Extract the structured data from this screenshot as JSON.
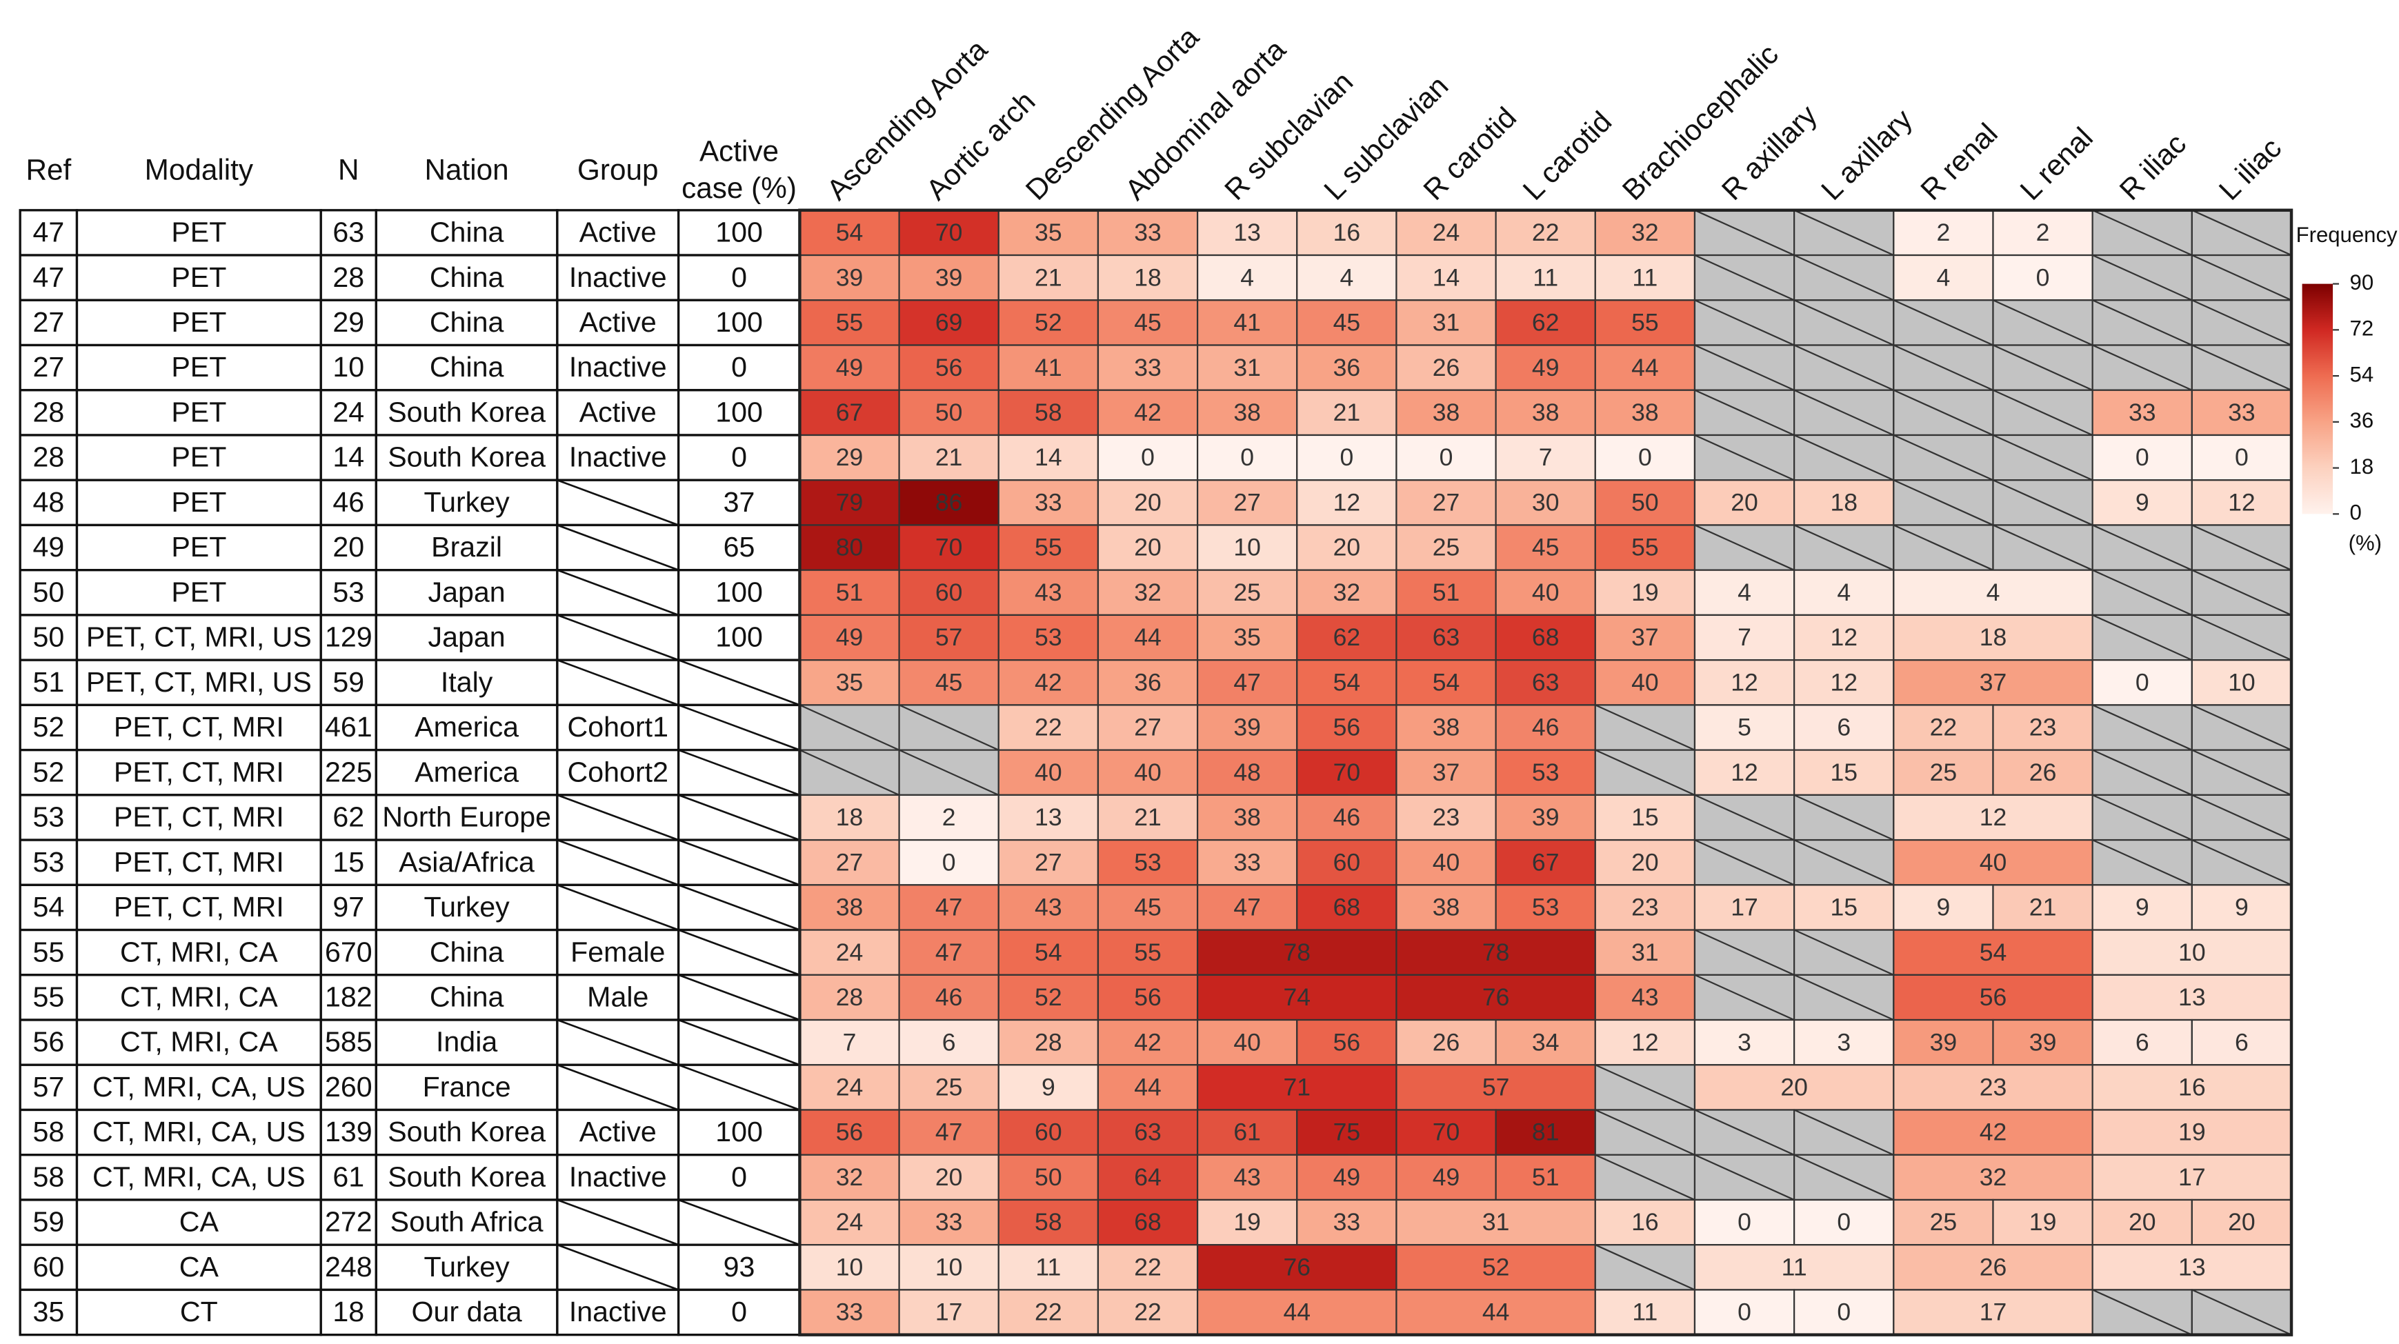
{
  "table": {
    "columns": [
      "Ref",
      "Modality",
      "N",
      "Nation",
      "Group",
      [
        "Active",
        "case (%)"
      ]
    ],
    "vessels": [
      "Ascending Aorta",
      "Aortic arch",
      "Descending Aorta",
      "Abdominal aorta",
      "R subclavian",
      "L subclavian",
      "R carotid",
      "L carotid",
      "Brachiocephalic",
      "R axillary",
      "L axillary",
      "R renal",
      "L renal",
      "R iliac",
      "L iliac"
    ],
    "rows": [
      {
        "ref": 47,
        "modality": "PET",
        "n": 63,
        "nation": "China",
        "group": "Active",
        "active_case": 100,
        "frequency": [
          54,
          70,
          35,
          33,
          13,
          16,
          24,
          22,
          32,
          null,
          null,
          2,
          2,
          null,
          null
        ]
      },
      {
        "ref": 47,
        "modality": "PET",
        "n": 28,
        "nation": "China",
        "group": "Inactive",
        "active_case": 0,
        "frequency": [
          39,
          39,
          21,
          18,
          4,
          4,
          14,
          11,
          11,
          null,
          null,
          4,
          0,
          null,
          null
        ]
      },
      {
        "ref": 27,
        "modality": "PET",
        "n": 29,
        "nation": "China",
        "group": "Active",
        "active_case": 100,
        "frequency": [
          55,
          69,
          52,
          45,
          41,
          45,
          31,
          62,
          55,
          null,
          null,
          null,
          null,
          null,
          null
        ]
      },
      {
        "ref": 27,
        "modality": "PET",
        "n": 10,
        "nation": "China",
        "group": "Inactive",
        "active_case": 0,
        "frequency": [
          49,
          56,
          41,
          33,
          31,
          36,
          26,
          49,
          44,
          null,
          null,
          null,
          null,
          null,
          null
        ]
      },
      {
        "ref": 28,
        "modality": "PET",
        "n": 24,
        "nation": "South Korea",
        "group": "Active",
        "active_case": 100,
        "frequency": [
          67,
          50,
          58,
          42,
          38,
          21,
          38,
          38,
          38,
          null,
          null,
          null,
          null,
          33,
          33
        ]
      },
      {
        "ref": 28,
        "modality": "PET",
        "n": 14,
        "nation": "South Korea",
        "group": "Inactive",
        "active_case": 0,
        "frequency": [
          29,
          21,
          14,
          0,
          0,
          0,
          0,
          7,
          0,
          null,
          null,
          null,
          null,
          0,
          0
        ]
      },
      {
        "ref": 48,
        "modality": "PET",
        "n": 46,
        "nation": "Turkey",
        "group": null,
        "active_case": 37,
        "frequency": [
          79,
          86,
          33,
          20,
          27,
          12,
          27,
          30,
          50,
          20,
          18,
          null,
          null,
          9,
          12
        ]
      },
      {
        "ref": 49,
        "modality": "PET",
        "n": 20,
        "nation": "Brazil",
        "group": null,
        "active_case": 65,
        "frequency": [
          80,
          70,
          55,
          20,
          10,
          20,
          25,
          45,
          55,
          null,
          null,
          null,
          null,
          null,
          null
        ]
      },
      {
        "ref": 50,
        "modality": "PET",
        "n": 53,
        "nation": "Japan",
        "group": null,
        "active_case": 100,
        "frequency": [
          51,
          60,
          43,
          32,
          25,
          32,
          51,
          40,
          19,
          4,
          4,
          {
            "value": 4,
            "span": 2
          },
          null,
          null
        ]
      },
      {
        "ref": 50,
        "modality": "PET, CT, MRI, US",
        "n": 129,
        "nation": "Japan",
        "group": null,
        "active_case": 100,
        "frequency": [
          49,
          57,
          53,
          44,
          35,
          62,
          63,
          68,
          37,
          7,
          12,
          {
            "value": 18,
            "span": 2
          },
          null,
          null
        ]
      },
      {
        "ref": 51,
        "modality": "PET, CT, MRI, US",
        "n": 59,
        "nation": "Italy",
        "group": null,
        "active_case": null,
        "frequency": [
          35,
          45,
          42,
          36,
          47,
          54,
          54,
          63,
          40,
          12,
          12,
          {
            "value": 37,
            "span": 2
          },
          0,
          10
        ]
      },
      {
        "ref": 52,
        "modality": "PET, CT, MRI",
        "n": 461,
        "nation": "America",
        "group": "Cohort1",
        "active_case": null,
        "frequency": [
          null,
          null,
          22,
          27,
          39,
          56,
          38,
          46,
          null,
          5,
          6,
          22,
          23,
          null,
          null
        ]
      },
      {
        "ref": 52,
        "modality": "PET, CT, MRI",
        "n": 225,
        "nation": "America",
        "group": "Cohort2",
        "active_case": null,
        "frequency": [
          null,
          null,
          40,
          40,
          48,
          70,
          37,
          53,
          null,
          12,
          15,
          25,
          26,
          null,
          null
        ]
      },
      {
        "ref": 53,
        "modality": "PET, CT, MRI",
        "n": 62,
        "nation": "North Europe",
        "group": null,
        "active_case": null,
        "frequency": [
          18,
          2,
          13,
          21,
          38,
          46,
          23,
          39,
          15,
          null,
          null,
          {
            "value": 12,
            "span": 2
          },
          null,
          null
        ]
      },
      {
        "ref": 53,
        "modality": "PET, CT, MRI",
        "n": 15,
        "nation": "Asia/Africa",
        "group": null,
        "active_case": null,
        "frequency": [
          27,
          0,
          27,
          53,
          33,
          60,
          40,
          67,
          20,
          null,
          null,
          {
            "value": 40,
            "span": 2
          },
          null,
          null
        ]
      },
      {
        "ref": 54,
        "modality": "PET, CT, MRI",
        "n": 97,
        "nation": "Turkey",
        "group": null,
        "active_case": null,
        "frequency": [
          38,
          47,
          43,
          45,
          47,
          68,
          38,
          53,
          23,
          17,
          15,
          9,
          21,
          9,
          9
        ]
      },
      {
        "ref": 55,
        "modality": "CT, MRI, CA",
        "n": 670,
        "nation": "China",
        "group": "Female",
        "active_case": null,
        "frequency": [
          24,
          47,
          54,
          55,
          {
            "value": 78,
            "span": 2
          },
          {
            "value": 78,
            "span": 2
          },
          31,
          null,
          null,
          {
            "value": 54,
            "span": 2
          },
          {
            "value": 10,
            "span": 2
          }
        ]
      },
      {
        "ref": 55,
        "modality": "CT, MRI, CA",
        "n": 182,
        "nation": "China",
        "group": "Male",
        "active_case": null,
        "frequency": [
          28,
          46,
          52,
          56,
          {
            "value": 74,
            "span": 2
          },
          {
            "value": 76,
            "span": 2
          },
          43,
          null,
          null,
          {
            "value": 56,
            "span": 2
          },
          {
            "value": 13,
            "span": 2
          }
        ]
      },
      {
        "ref": 56,
        "modality": "CT, MRI, CA",
        "n": 585,
        "nation": "India",
        "group": null,
        "active_case": null,
        "frequency": [
          7,
          6,
          28,
          42,
          40,
          56,
          26,
          34,
          12,
          3,
          3,
          39,
          39,
          6,
          6
        ]
      },
      {
        "ref": 57,
        "modality": "CT, MRI, CA, US",
        "n": 260,
        "nation": "France",
        "group": null,
        "active_case": null,
        "frequency": [
          24,
          25,
          9,
          44,
          {
            "value": 71,
            "span": 2
          },
          {
            "value": 57,
            "span": 2
          },
          null,
          {
            "value": 20,
            "span": 2
          },
          {
            "value": 23,
            "span": 2
          },
          {
            "value": 16,
            "span": 2
          }
        ]
      },
      {
        "ref": 58,
        "modality": "CT, MRI, CA, US",
        "n": 139,
        "nation": "South Korea",
        "group": "Active",
        "active_case": 100,
        "frequency": [
          56,
          47,
          60,
          63,
          61,
          75,
          70,
          81,
          null,
          null,
          null,
          {
            "value": 42,
            "span": 2
          },
          {
            "value": 19,
            "span": 2
          }
        ]
      },
      {
        "ref": 58,
        "modality": "CT, MRI, CA, US",
        "n": 61,
        "nation": "South Korea",
        "group": "Inactive",
        "active_case": 0,
        "frequency": [
          32,
          20,
          50,
          64,
          43,
          49,
          49,
          51,
          null,
          null,
          null,
          {
            "value": 32,
            "span": 2
          },
          {
            "value": 17,
            "span": 2
          }
        ]
      },
      {
        "ref": 59,
        "modality": "CA",
        "n": 272,
        "nation": "South Africa",
        "group": null,
        "active_case": null,
        "frequency": [
          24,
          33,
          58,
          68,
          19,
          33,
          {
            "value": 31,
            "span": 2
          },
          16,
          0,
          0,
          25,
          19,
          20,
          20
        ]
      },
      {
        "ref": 60,
        "modality": "CA",
        "n": 248,
        "nation": "Turkey",
        "group": null,
        "active_case": 93,
        "frequency": [
          10,
          10,
          11,
          22,
          {
            "value": 76,
            "span": 2
          },
          {
            "value": 52,
            "span": 2
          },
          null,
          {
            "value": 11,
            "span": 2
          },
          {
            "value": 26,
            "span": 2
          },
          {
            "value": 13,
            "span": 2
          }
        ]
      },
      {
        "ref": 35,
        "modality": "CT",
        "n": 18,
        "nation": "Our data",
        "group": "Inactive",
        "active_case": 0,
        "frequency": [
          33,
          17,
          22,
          22,
          {
            "value": 44,
            "span": 2
          },
          {
            "value": 44,
            "span": 2
          },
          11,
          0,
          0,
          {
            "value": 17,
            "span": 2
          },
          null,
          null
        ]
      }
    ]
  },
  "legend": {
    "title": "Frequency",
    "unit": "(%)",
    "colorlim": [
      0,
      90
    ],
    "ticks": [
      90,
      72,
      54,
      36,
      18,
      0
    ],
    "colors": [
      "#fff2ed",
      "#fcd1bf",
      "#f8a386",
      "#ee6c51",
      "#d02822",
      "#7c0000"
    ],
    "missing_color": "#c3c3c3"
  }
}
